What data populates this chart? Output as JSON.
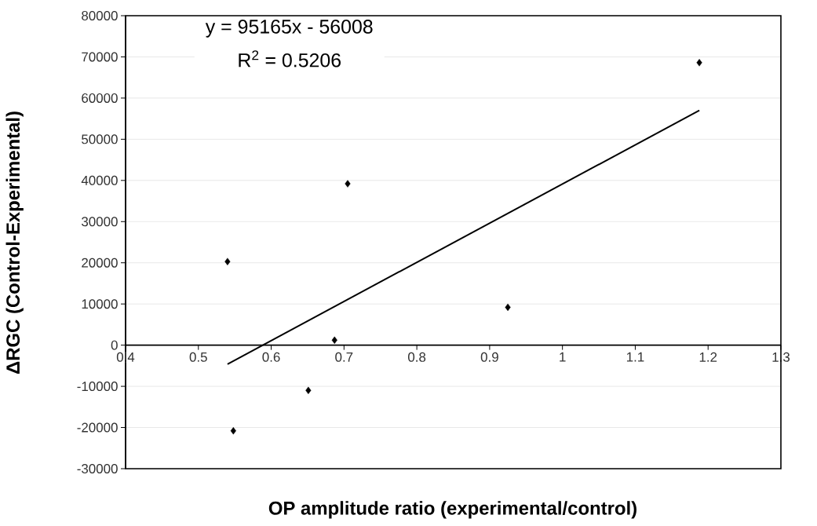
{
  "chart_data": {
    "type": "scatter",
    "xlabel": "OP amplitude ratio (experimental/control)",
    "ylabel": "ΔRGC (Control-Experimental)",
    "annotations": [
      "y = 95165x - 56008",
      "R$^{2}$ = 0.5206"
    ],
    "xlim": [
      0.4,
      1.3
    ],
    "ylim": [
      -30000,
      80000
    ],
    "xticks": [
      0.4,
      0.5,
      0.6,
      0.7,
      0.8,
      0.9,
      1,
      1.1,
      1.2,
      1.3
    ],
    "yticks": [
      -30000,
      -20000,
      -10000,
      0,
      10000,
      20000,
      30000,
      40000,
      50000,
      60000,
      70000,
      80000
    ],
    "grid": "y",
    "marker": "diamond",
    "series": [
      {
        "color": "#000000",
        "x": [
          0.54,
          0.548,
          0.651,
          0.687,
          0.705,
          0.925,
          1.188
        ],
        "values": [
          20300,
          -20800,
          -11000,
          1200,
          39200,
          9200,
          68600
        ]
      },
      {
        "type": "line",
        "color": "#000000",
        "marker": "none",
        "line_style": "solid",
        "x": [
          0.54,
          1.188
        ],
        "values": [
          -4600,
          57000
        ]
      }
    ]
  }
}
